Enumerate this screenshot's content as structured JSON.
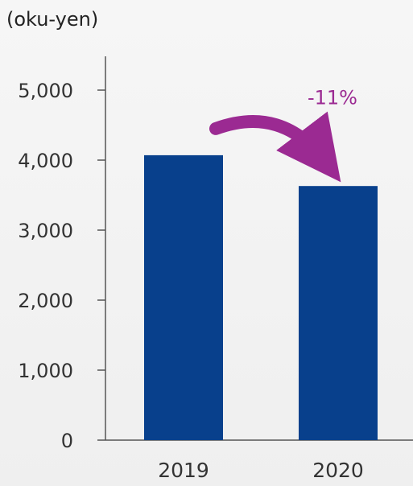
{
  "unit_label": "(oku-yen)",
  "colors": {
    "bar": "#08408c",
    "axis": "#555555",
    "annotation": "#9b2a92"
  },
  "chart_data": {
    "type": "bar",
    "title": "",
    "xlabel": "",
    "ylabel": "(oku-yen)",
    "categories": [
      "2019",
      "2020"
    ],
    "values": [
      4070,
      3630
    ],
    "ylim": [
      0,
      5000
    ],
    "yticks": [
      0,
      1000,
      2000,
      3000,
      4000,
      5000
    ],
    "ytick_labels": [
      "0",
      "1,000",
      "2,000",
      "3,000",
      "4,000",
      "5,000"
    ],
    "grid": false,
    "legend": "none",
    "annotation": {
      "text": "-11%",
      "from": "2019",
      "to": "2020"
    }
  }
}
